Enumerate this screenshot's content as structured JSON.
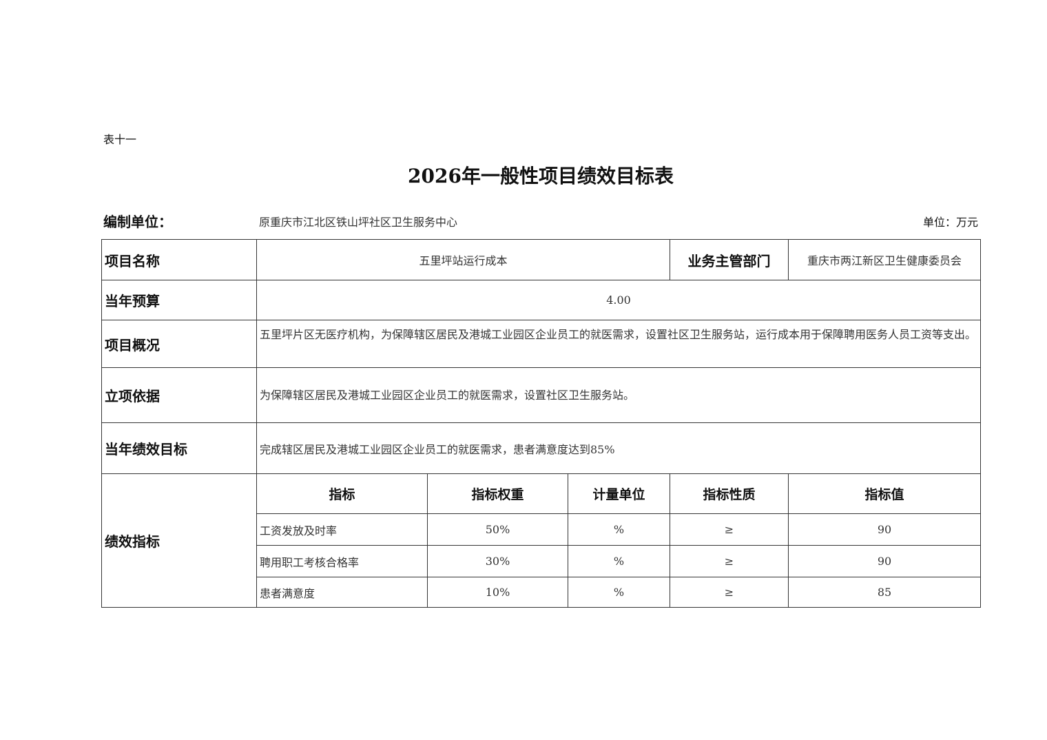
{
  "header": {
    "table_no": "表十一",
    "title": "2026年一般性项目绩效目标表",
    "org_label": "编制单位：",
    "org_value": "原重庆市江北区铁山坪社区卫生服务中心",
    "unit": "单位：万元"
  },
  "rows": {
    "project_name_label": "项目名称",
    "project_name": "五里坪站运行成本",
    "dept_label": "业务主管部门",
    "dept": "重庆市两江新区卫生健康委员会",
    "budget_label": "当年预算",
    "budget": "4.00",
    "overview_label": "项目概况",
    "overview": "五里坪片区无医疗机构，为保障辖区居民及港城工业园区企业员工的就医需求，设置社区卫生服务站，运行成本用于保障聘用医务人员工资等支出。",
    "basis_label": "立项依据",
    "basis": "为保障辖区居民及港城工业园区企业员工的就医需求，设置社区卫生服务站。",
    "goal_label": "当年绩效目标",
    "goal": "完成辖区居民及港城工业园区企业员工的就医需求，患者满意度达到85%"
  },
  "indicators": {
    "label": "绩效指标",
    "headers": [
      "指标",
      "指标权重",
      "计量单位",
      "指标性质",
      "指标值"
    ],
    "items": [
      [
        "工资发放及时率",
        "50%",
        "%",
        "≥",
        "90"
      ],
      [
        "聘用职工考核合格率",
        "30%",
        "%",
        "≥",
        "90"
      ],
      [
        "患者满意度",
        "10%",
        "%",
        "≥",
        "85"
      ]
    ]
  }
}
